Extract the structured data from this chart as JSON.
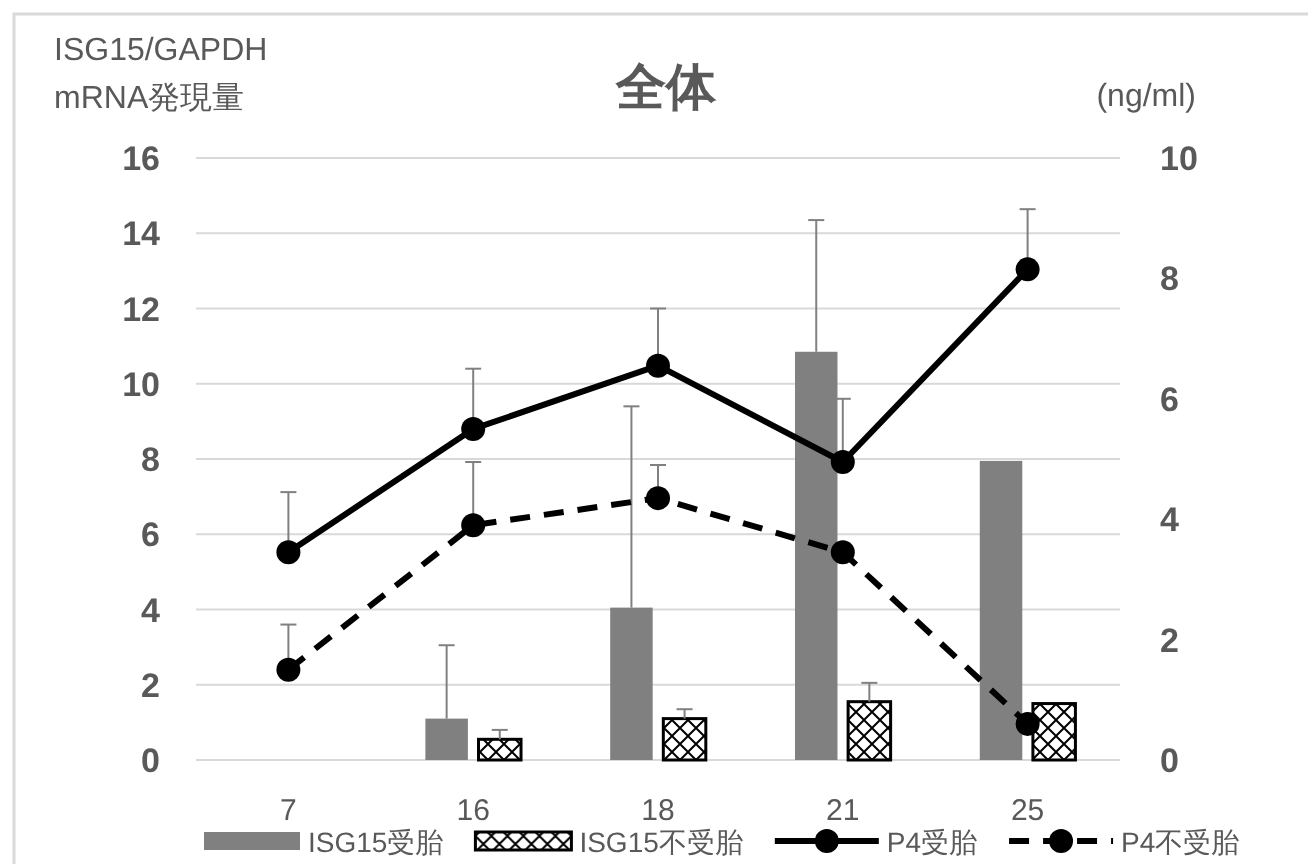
{
  "chart_data": {
    "type": "bar",
    "title": "全体",
    "ylabel": "ISG15/GAPDH mRNA発現量",
    "y2label": "(ng/ml)",
    "categories": [
      "7",
      "16",
      "18",
      "21",
      "25"
    ],
    "series": [
      {
        "name": "ISG15受胎",
        "color": "#808080",
        "values": [
          null,
          1.1,
          4.05,
          10.85,
          7.95
        ],
        "errors": [
          null,
          [
            1.1,
            3.05
          ],
          [
            4.05,
            9.4
          ],
          [
            10.85,
            14.35
          ],
          null
        ]
      },
      {
        "name": "ISG15不受胎",
        "color": "#000000",
        "values": [
          null,
          0.55,
          1.1,
          1.55,
          1.5
        ],
        "errors": [
          null,
          [
            0.55,
            0.8
          ],
          [
            1.1,
            1.35
          ],
          [
            1.55,
            2.05
          ],
          null
        ]
      },
      {
        "name": "P4受胎",
        "type": "line",
        "axis": "y2",
        "color": "#000000",
        "marker": "circle",
        "line_style": "solid",
        "values": [
          3.45,
          5.5,
          6.55,
          4.95,
          8.15
        ],
        "errors": [
          [
            3.45,
            4.45
          ],
          [
            5.5,
            6.5
          ],
          [
            6.55,
            7.5
          ],
          [
            4.95,
            6.0
          ],
          [
            8.15,
            9.15
          ]
        ]
      },
      {
        "name": "P4不受胎",
        "type": "line",
        "axis": "y2",
        "color": "#000000",
        "marker": "circle",
        "line_style": "dashed",
        "values": [
          1.5,
          3.9,
          4.35,
          3.45,
          0.6
        ],
        "errors": [
          [
            1.5,
            2.25
          ],
          [
            3.9,
            4.95
          ],
          [
            4.35,
            4.9
          ],
          null,
          null
        ]
      }
    ],
    "ylim": [
      0,
      16
    ],
    "yticks": [
      0,
      2,
      4,
      6,
      8,
      10,
      12,
      14,
      16
    ],
    "y2lim": [
      0,
      10
    ],
    "y2ticks": [
      0,
      2,
      4,
      6,
      8,
      10
    ],
    "grid": "y",
    "legend": "bottom"
  }
}
